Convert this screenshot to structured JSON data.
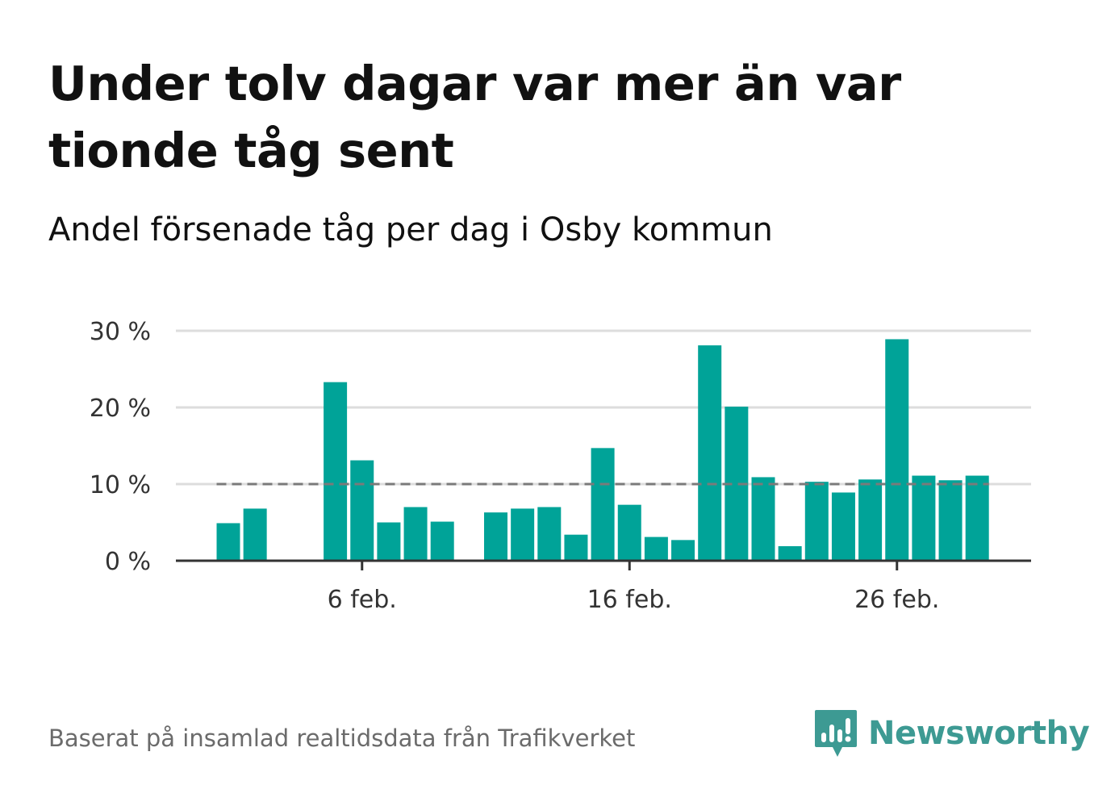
{
  "header": {
    "title": "Under tolv dagar var mer än var tionde tåg sent",
    "subtitle": "Andel försenade tåg per dag i Osby kommun"
  },
  "footer": {
    "source": "Baserat på insamlad realtidsdata från Trafikverket",
    "brand": "Newsworthy",
    "brand_icon": "bar-chart-speech-bubble-icon"
  },
  "colors": {
    "bar": "#00a398",
    "reference_line": "#7a7a7a",
    "grid": "#dddddd",
    "axis": "#333333",
    "brand": "#3d9a93"
  },
  "chart_data": {
    "type": "bar",
    "title": "Under tolv dagar var mer än var tionde tåg sent",
    "subtitle": "Andel försenade tåg per dag i Osby kommun",
    "xlabel": "",
    "ylabel": "",
    "y_unit": "%",
    "ylim": [
      0,
      30
    ],
    "y_ticks": [
      0,
      10,
      20,
      30
    ],
    "y_tick_labels": [
      "0 %",
      "10 %",
      "20 %",
      "30 %"
    ],
    "x_tick_labels": [
      {
        "day": 6,
        "label": "6 feb."
      },
      {
        "day": 16,
        "label": "16 feb."
      },
      {
        "day": 26,
        "label": "26 feb."
      }
    ],
    "grid": true,
    "reference_line": {
      "value": 10,
      "style": "dashed",
      "from_day": 1,
      "to_day": 29
    },
    "days": [
      1,
      2,
      3,
      4,
      5,
      6,
      7,
      8,
      9,
      10,
      11,
      12,
      13,
      14,
      15,
      16,
      17,
      18,
      19,
      20,
      21,
      22,
      23,
      24,
      25,
      26,
      27,
      28,
      29
    ],
    "values": [
      4.9,
      6.8,
      null,
      null,
      23.3,
      13.1,
      5.0,
      7.0,
      5.1,
      null,
      6.3,
      6.8,
      7.0,
      3.4,
      14.7,
      7.3,
      3.1,
      2.7,
      28.1,
      20.1,
      10.9,
      1.9,
      10.3,
      8.9,
      10.6,
      28.9,
      11.1,
      10.5,
      11.1
    ]
  }
}
